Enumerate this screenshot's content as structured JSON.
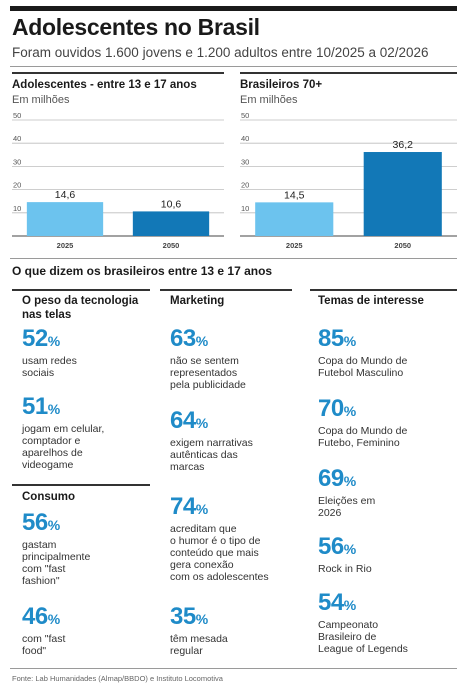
{
  "header": {
    "title": "Adolescentes no Brasil",
    "subtitle": "Foram ouvidos 1.600 jovens e 1.200 adultos entre 10/2025 a 02/2026"
  },
  "chart_data": [
    {
      "type": "bar",
      "title": "Adolescentes - entre 13 e 17 anos",
      "subtitle": "Em milhões",
      "categories": [
        "2025",
        "2050"
      ],
      "values": [
        14.6,
        10.6
      ],
      "value_labels": [
        "14,6",
        "10,6"
      ],
      "colors": [
        "#6cc3ee",
        "#1278b7"
      ],
      "ylim": [
        0,
        50
      ],
      "yticks": [
        10,
        20,
        30,
        40,
        50
      ],
      "grid": true
    },
    {
      "type": "bar",
      "title": "Brasileiros 70+",
      "subtitle": "Em milhões",
      "categories": [
        "2025",
        "2050"
      ],
      "values": [
        14.5,
        36.2
      ],
      "value_labels": [
        "14,5",
        "36,2"
      ],
      "colors": [
        "#6cc3ee",
        "#1278b7"
      ],
      "ylim": [
        0,
        50
      ],
      "yticks": [
        10,
        20,
        30,
        40,
        50
      ],
      "grid": true
    }
  ],
  "survey": {
    "title": "O que dizem os brasileiros entre 13 e 17 anos",
    "tecnologia": {
      "title": "O peso da tecnologia\nnas telas",
      "items": [
        {
          "value": "52",
          "desc": "usam redes\nsociais"
        },
        {
          "value": "51",
          "desc": "jogam em celular,\ncomptador e\naparelhos de\nvideogame"
        }
      ]
    },
    "consumo": {
      "title": "Consumo",
      "items": [
        {
          "value": "56",
          "desc": "gastam\nprincipalmente\ncom \"fast\nfashion\""
        },
        {
          "value": "46",
          "desc": "com \"fast\nfood\""
        }
      ]
    },
    "marketing": {
      "title": "Marketing",
      "items": [
        {
          "value": "63",
          "desc": "não se sentem\nrepresentados\npela publicidade"
        },
        {
          "value": "64",
          "desc": "exigem narrativas\nautênticas das\nmarcas"
        },
        {
          "value": "74",
          "desc": "acreditam que\no humor é o tipo de\nconteúdo que mais\ngera conexão\ncom os adolescentes"
        },
        {
          "value": "35",
          "desc": "têm mesada\nregular"
        }
      ]
    },
    "temas": {
      "title": "Temas de interesse",
      "items": [
        {
          "value": "85",
          "desc": "Copa do  Mundo de\nFutebol Masculino"
        },
        {
          "value": "70",
          "desc": "Copa do Mundo de\nFutebo, Feminino"
        },
        {
          "value": "69",
          "desc": "Eleições em\n2026"
        },
        {
          "value": "56",
          "desc": "Rock in Rio"
        },
        {
          "value": "54",
          "desc": "Campeonato\nBrasileiro de\nLeague of Legends"
        }
      ]
    },
    "percent_sign": "%"
  },
  "footer": {
    "source": "Fonte: Lab Humanidades (Almap/BBDO) e Instituto Locomotiva"
  }
}
